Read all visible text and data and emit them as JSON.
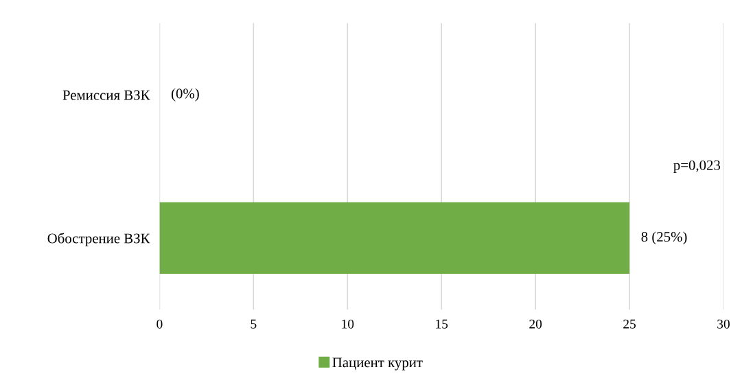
{
  "chart_data": {
    "type": "bar",
    "orientation": "horizontal",
    "categories": [
      "Ремиссия ВЗК",
      "Обострение ВЗК"
    ],
    "series": [
      {
        "name": "Пациент курит",
        "color": "#70ad47",
        "values": [
          0,
          25
        ],
        "value_labels": [
          "(0%)",
          "8 (25%)"
        ]
      }
    ],
    "xlim": [
      0,
      30
    ],
    "xticks": [
      0,
      5,
      10,
      15,
      20,
      25,
      30
    ],
    "grid": "x",
    "legend": "bottom",
    "annotations": [
      "p=0,023"
    ]
  }
}
